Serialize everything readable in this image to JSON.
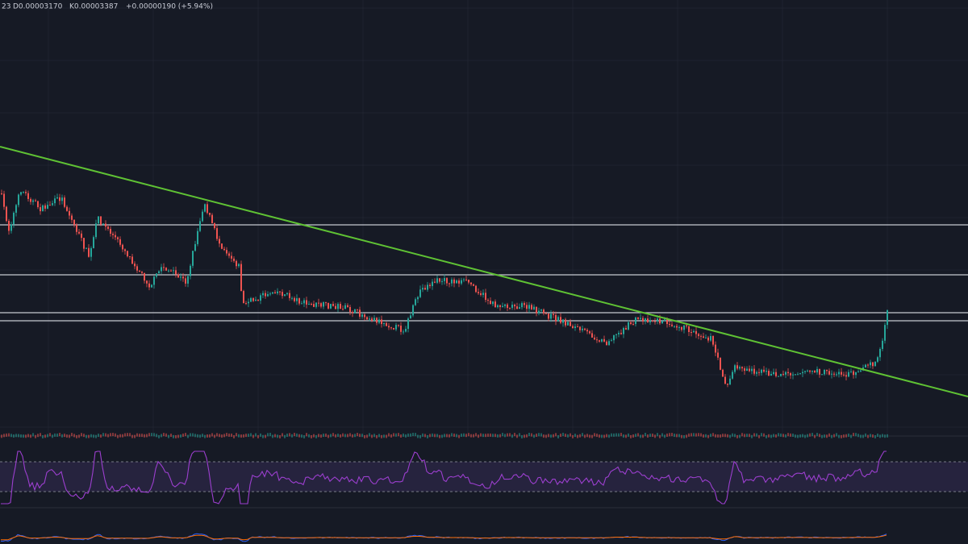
{
  "header": {
    "interval": "23",
    "open": "D0.00003170",
    "close": "K0.00003387",
    "change": "+0.00000190 (+5.94%)"
  }
}
